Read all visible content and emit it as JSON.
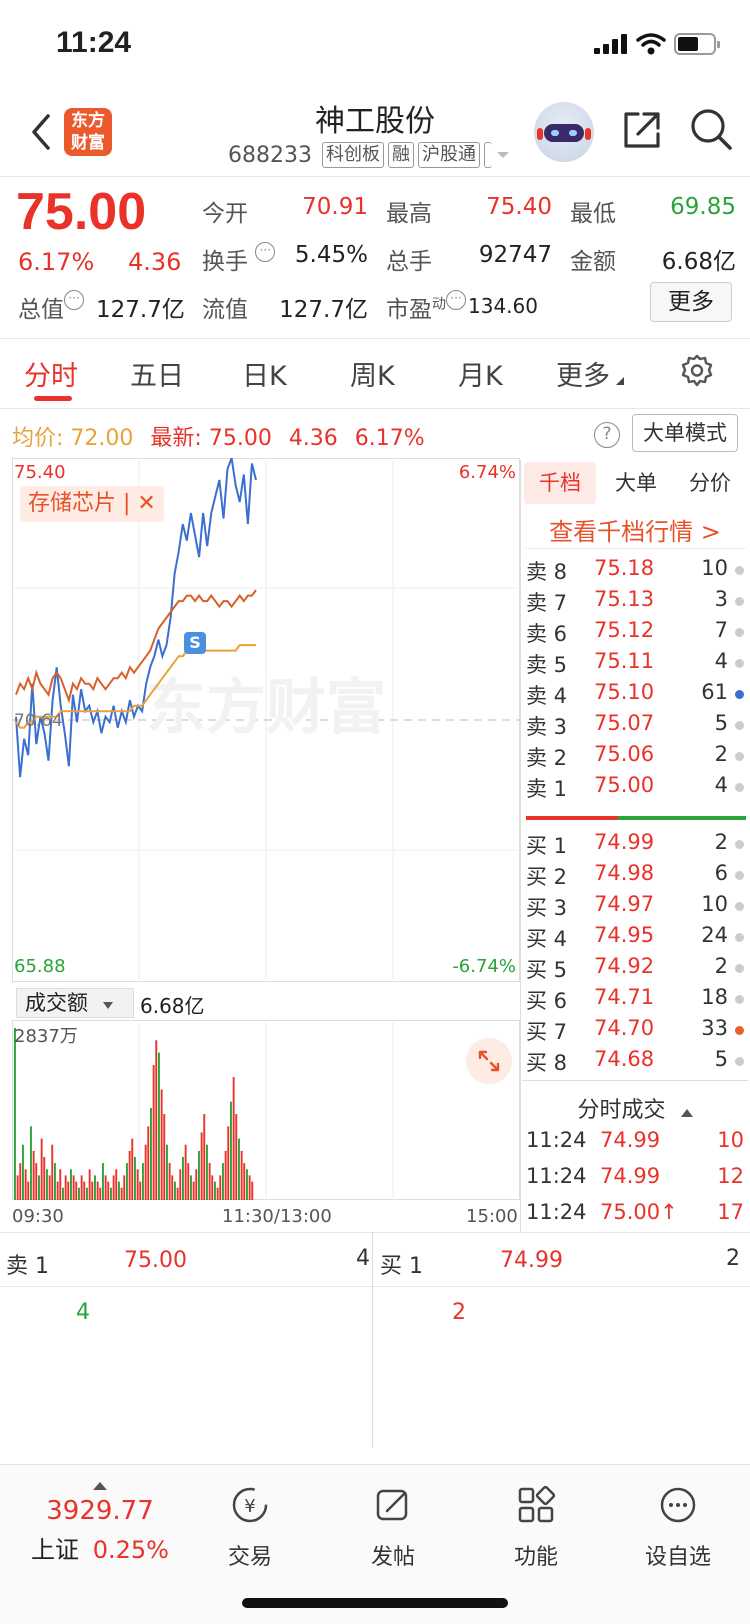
{
  "status": {
    "time": "11:24"
  },
  "header": {
    "logo_line1": "东方",
    "logo_line2": "财富",
    "name": "神工股份",
    "code": "688233",
    "tags": [
      "科创板",
      "融",
      "沪股通"
    ]
  },
  "quote": {
    "price": "75.00",
    "pct": "6.17%",
    "change": "4.36",
    "open_label": "今开",
    "open": "70.91",
    "high_label": "最高",
    "high": "75.40",
    "low_label": "最低",
    "low": "69.85",
    "turnover_label": "换手",
    "turnover": "5.45%",
    "volume_label": "总手",
    "volume": "92747",
    "amount_label": "金额",
    "amount": "6.68亿",
    "mktcap_label": "总值",
    "mktcap": "127.7亿",
    "float_label": "流值",
    "float": "127.7亿",
    "pe_label": "市盈",
    "pe_sup": "动",
    "pe": "134.60",
    "more_label": "更多"
  },
  "tabs": [
    {
      "label": "分时",
      "active": true
    },
    {
      "label": "五日"
    },
    {
      "label": "日K"
    },
    {
      "label": "周K"
    },
    {
      "label": "月K"
    },
    {
      "label": "更多"
    }
  ],
  "avg_row": {
    "avg_label": "均价:",
    "avg": "72.00",
    "latest_label": "最新:",
    "latest": "75.00",
    "change": "4.36",
    "pct": "6.17%",
    "help": "?",
    "mode_label": "大单模式"
  },
  "chart": {
    "y_top": "75.40",
    "y_bottom": "65.88",
    "pct_top": "6.74%",
    "pct_bottom": "-6.74%",
    "prev_close": "70.64",
    "tag_label": "存储芯片",
    "watermark": "东方财富",
    "vol_selector": "成交额",
    "vol_total": "6.68亿",
    "vol_max": "2837万",
    "x_start": "09:30",
    "x_mid": "11:30/13:00",
    "x_end": "15:00"
  },
  "chart_data": {
    "type": "line",
    "ylim": [
      65.88,
      75.4
    ],
    "series": [
      {
        "name": "价格",
        "color": "#3a6fd0",
        "values": [
          70.7,
          69.6,
          70.3,
          70.0,
          71.3,
          70.2,
          70.7,
          70.4,
          69.9,
          71.0,
          71.6,
          70.9,
          70.4,
          69.8,
          71.1,
          70.6,
          71.2,
          70.8,
          70.9,
          70.6,
          70.8,
          70.4,
          70.7,
          70.6,
          70.9,
          70.5,
          70.8,
          70.6,
          71.0,
          70.7,
          70.9,
          70.8,
          71.3,
          71.6,
          71.8,
          72.1,
          71.8,
          72.0,
          72.5,
          73.3,
          73.7,
          74.2,
          73.9,
          74.4,
          74.0,
          73.6,
          74.4,
          73.8,
          74.4,
          74.7,
          75.0,
          74.3,
          75.2,
          75.4,
          74.9,
          74.6,
          75.1,
          74.2,
          75.3,
          75.0
        ]
      },
      {
        "name": "均价",
        "color": "#e9a23b",
        "values": [
          70.6,
          70.5,
          70.5,
          70.6,
          70.6,
          70.7,
          70.7,
          70.7,
          70.7,
          70.7,
          70.7,
          70.8,
          70.8,
          70.8,
          70.8,
          70.8,
          70.8,
          70.8,
          70.8,
          70.8,
          70.8,
          70.8,
          70.8,
          70.8,
          70.8,
          70.8,
          70.8,
          70.8,
          70.8,
          70.9,
          70.9,
          70.9,
          71.0,
          71.1,
          71.2,
          71.3,
          71.4,
          71.5,
          71.6,
          71.7,
          71.8,
          71.8,
          71.9,
          71.9,
          71.9,
          71.9,
          71.9,
          71.9,
          71.9,
          71.9,
          71.9,
          71.9,
          71.9,
          71.9,
          71.9,
          72.0,
          72.0,
          72.0,
          72.0,
          72.0
        ]
      },
      {
        "name": "存储芯片",
        "color": "#d9602a",
        "values": [
          71.1,
          71.3,
          71.2,
          71.4,
          71.2,
          71.5,
          71.3,
          71.2,
          71.1,
          71.4,
          71.5,
          71.4,
          71.2,
          71.0,
          71.3,
          71.2,
          71.4,
          71.3,
          71.3,
          71.2,
          71.4,
          71.3,
          71.2,
          71.3,
          71.4,
          71.4,
          71.5,
          71.4,
          71.6,
          71.5,
          71.6,
          71.7,
          71.8,
          71.9,
          72.1,
          72.3,
          72.4,
          72.5,
          72.6,
          72.7,
          72.8,
          72.8,
          72.9,
          72.9,
          72.8,
          72.9,
          72.8,
          72.8,
          72.9,
          72.8,
          72.7,
          72.8,
          72.8,
          72.7,
          72.8,
          72.9,
          72.8,
          72.9,
          72.9,
          73.0
        ]
      }
    ],
    "volumes": [
      28,
      4,
      6,
      9,
      5,
      3,
      12,
      8,
      6,
      4,
      10,
      7,
      5,
      4,
      9,
      6,
      3,
      5,
      2,
      4,
      3,
      5,
      4,
      3,
      2,
      4,
      3,
      2,
      5,
      3,
      4,
      3,
      2,
      6,
      4,
      3,
      2,
      4,
      5,
      3,
      2,
      4,
      6,
      8,
      10,
      7,
      5,
      3,
      6,
      9,
      12,
      15,
      22,
      26,
      24,
      18,
      14,
      9,
      6,
      4,
      3,
      2,
      5,
      7,
      9,
      6,
      4,
      3,
      5,
      8,
      11,
      14,
      9,
      6,
      4,
      3,
      2,
      4,
      6,
      8,
      12,
      16,
      20,
      14,
      10,
      8,
      6,
      5,
      4,
      3
    ]
  },
  "right_panel": {
    "tabs": [
      {
        "label": "千档",
        "active": true
      },
      {
        "label": "大单"
      },
      {
        "label": "分价"
      }
    ],
    "link": "查看千档行情 >",
    "asks": [
      {
        "label": "卖 8",
        "price": "75.18",
        "qty": "10",
        "dot": "#ccc"
      },
      {
        "label": "卖 7",
        "price": "75.13",
        "qty": "3",
        "dot": "#ccc"
      },
      {
        "label": "卖 6",
        "price": "75.12",
        "qty": "7",
        "dot": "#ccc"
      },
      {
        "label": "卖 5",
        "price": "75.11",
        "qty": "4",
        "dot": "#ccc"
      },
      {
        "label": "卖 4",
        "price": "75.10",
        "qty": "61",
        "dot": "#3a6fd0"
      },
      {
        "label": "卖 3",
        "price": "75.07",
        "qty": "5",
        "dot": "#ccc"
      },
      {
        "label": "卖 2",
        "price": "75.06",
        "qty": "2",
        "dot": "#ccc"
      },
      {
        "label": "卖 1",
        "price": "75.00",
        "qty": "4",
        "dot": "#ccc"
      }
    ],
    "bids": [
      {
        "label": "买 1",
        "price": "74.99",
        "qty": "2",
        "dot": "#ccc"
      },
      {
        "label": "买 2",
        "price": "74.98",
        "qty": "6",
        "dot": "#ccc"
      },
      {
        "label": "买 3",
        "price": "74.97",
        "qty": "10",
        "dot": "#ccc"
      },
      {
        "label": "买 4",
        "price": "74.95",
        "qty": "24",
        "dot": "#ccc"
      },
      {
        "label": "买 5",
        "price": "74.92",
        "qty": "2",
        "dot": "#ccc"
      },
      {
        "label": "买 6",
        "price": "74.71",
        "qty": "18",
        "dot": "#ccc"
      },
      {
        "label": "买 7",
        "price": "74.70",
        "qty": "33",
        "dot": "#e8602a"
      },
      {
        "label": "买 8",
        "price": "74.68",
        "qty": "5",
        "dot": "#ccc"
      }
    ],
    "ticks_header": "分时成交",
    "ticks": [
      {
        "time": "11:24",
        "price": "74.99",
        "vol": "10"
      },
      {
        "time": "11:24",
        "price": "74.99",
        "vol": "12"
      },
      {
        "time": "11:24",
        "price": "75.00↑",
        "vol": "17"
      }
    ]
  },
  "lower": {
    "sell1_label": "卖 1",
    "sell1_price": "75.00",
    "sell1_qty": "4",
    "buy1_label": "买 1",
    "buy1_price": "74.99",
    "buy1_qty": "2",
    "sell_detail": "4",
    "buy_detail": "2"
  },
  "bottom_nav": {
    "index_value": "3929.77",
    "index_name": "上证",
    "index_pct": "0.25%",
    "trade": "交易",
    "post": "发帖",
    "func": "功能",
    "watch": "设自选"
  }
}
